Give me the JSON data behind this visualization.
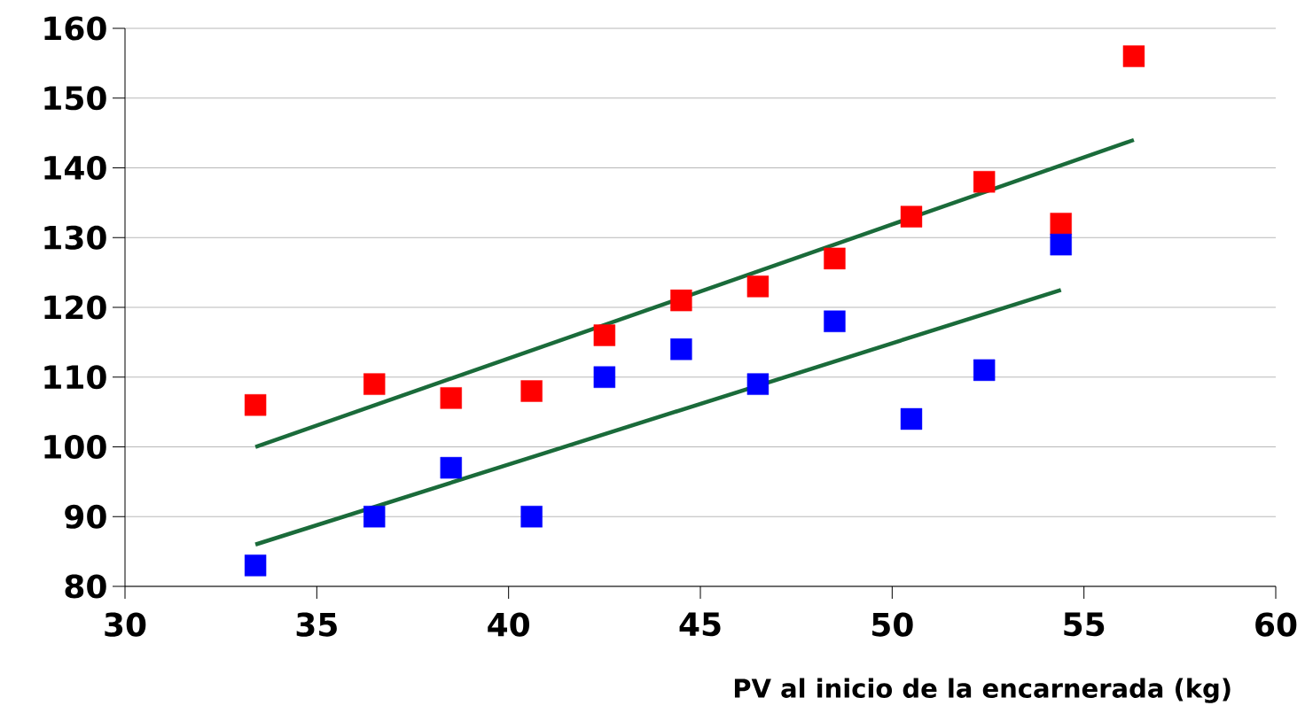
{
  "chart_data": {
    "type": "scatter",
    "xlabel": "PV al inicio de la encarnerada (kg)",
    "xlim": [
      30,
      60
    ],
    "xticks": [
      30,
      35,
      40,
      45,
      50,
      55,
      60
    ],
    "ylim": [
      80,
      160
    ],
    "yticks": [
      80,
      90,
      100,
      110,
      120,
      130,
      140,
      150,
      160
    ],
    "grid": "y",
    "marker": "square",
    "series": [
      {
        "color": "#ff0000",
        "x": [
          33.4,
          36.5,
          38.5,
          40.6,
          42.5,
          44.5,
          46.5,
          48.5,
          50.5,
          52.4,
          54.4,
          56.3
        ],
        "values": [
          106,
          109,
          107,
          108,
          116,
          121,
          123,
          127,
          133,
          138,
          132,
          156
        ]
      },
      {
        "color": "#0000ff",
        "x": [
          33.4,
          36.5,
          38.5,
          40.6,
          42.5,
          44.5,
          46.5,
          48.5,
          50.5,
          52.4,
          54.4
        ],
        "values": [
          83,
          90,
          97,
          90,
          110,
          114,
          109,
          118,
          104,
          111,
          129
        ]
      },
      {
        "type": "line",
        "color": "#1a6b3a",
        "marker": "none",
        "x": [
          33.4,
          56.3
        ],
        "values": [
          100,
          144
        ]
      },
      {
        "type": "line",
        "color": "#1a6b3a",
        "marker": "none",
        "x": [
          33.4,
          54.4
        ],
        "values": [
          86,
          122.5
        ]
      }
    ]
  }
}
